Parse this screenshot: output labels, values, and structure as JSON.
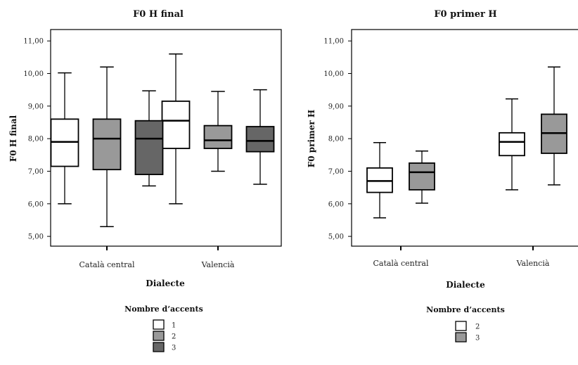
{
  "chart_data": [
    {
      "type": "boxplot",
      "title": "F0 H final",
      "xlabel": "Dialecte",
      "ylabel": "F0 H final",
      "ylim": [
        4.7,
        11.35
      ],
      "yticks": [
        "5,00",
        "6,00",
        "7,00",
        "8,00",
        "9,00",
        "10,00",
        "11,00"
      ],
      "categories": [
        "Català central",
        "Valencià"
      ],
      "legend": {
        "title": "Nombre d’accents",
        "entries": [
          {
            "label": "1",
            "color": "#ffffff"
          },
          {
            "label": "2",
            "color": "#999999"
          },
          {
            "label": "3",
            "color": "#666666"
          }
        ]
      },
      "series": [
        {
          "name": "1",
          "color": "#ffffff",
          "boxes": [
            {
              "min": 6.0,
              "q1": 7.15,
              "median": 7.9,
              "q3": 8.6,
              "max": 10.02
            },
            {
              "min": 6.0,
              "q1": 7.7,
              "median": 8.55,
              "q3": 9.15,
              "max": 10.6
            }
          ]
        },
        {
          "name": "2",
          "color": "#999999",
          "boxes": [
            {
              "min": 5.3,
              "q1": 7.05,
              "median": 8.0,
              "q3": 8.6,
              "max": 10.2
            },
            {
              "min": 7.0,
              "q1": 7.7,
              "median": 7.95,
              "q3": 8.4,
              "max": 9.45
            }
          ]
        },
        {
          "name": "3",
          "color": "#666666",
          "boxes": [
            {
              "min": 6.55,
              "q1": 6.9,
              "median": 8.0,
              "q3": 8.55,
              "max": 9.47
            },
            {
              "min": 6.6,
              "q1": 7.6,
              "median": 7.93,
              "q3": 8.37,
              "max": 9.5
            }
          ]
        }
      ]
    },
    {
      "type": "boxplot",
      "title": "F0 primer H",
      "xlabel": "Dialecte",
      "ylabel": "F0 primer H",
      "ylim": [
        4.7,
        11.35
      ],
      "yticks": [
        "5,00",
        "6,00",
        "7,00",
        "8,00",
        "9,00",
        "10,00",
        "11,00"
      ],
      "categories": [
        "Català central",
        "Valencià"
      ],
      "legend": {
        "title": "Nombre d’accents",
        "entries": [
          {
            "label": "2",
            "color": "#ffffff"
          },
          {
            "label": "3",
            "color": "#999999"
          }
        ]
      },
      "series": [
        {
          "name": "2",
          "color": "#ffffff",
          "boxes": [
            {
              "min": 5.57,
              "q1": 6.35,
              "median": 6.7,
              "q3": 7.1,
              "max": 7.88
            },
            {
              "min": 6.43,
              "q1": 7.48,
              "median": 7.9,
              "q3": 8.18,
              "max": 9.22
            }
          ]
        },
        {
          "name": "3",
          "color": "#999999",
          "boxes": [
            {
              "min": 6.02,
              "q1": 6.43,
              "median": 6.97,
              "q3": 7.25,
              "max": 7.62
            },
            {
              "min": 6.58,
              "q1": 7.55,
              "median": 8.17,
              "q3": 8.75,
              "max": 10.2
            }
          ]
        }
      ]
    }
  ]
}
